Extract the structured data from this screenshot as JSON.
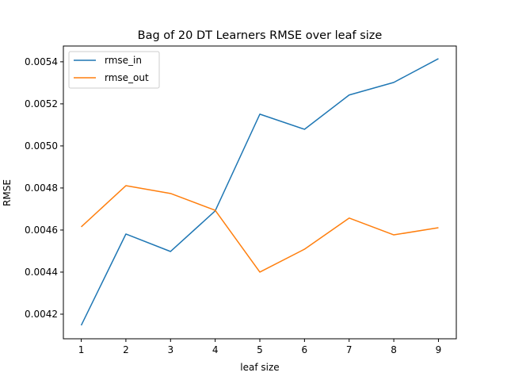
{
  "chart_data": {
    "type": "line",
    "title": "Bag of 20 DT Learners RMSE over leaf size",
    "xlabel": "leaf size",
    "ylabel": "RMSE",
    "x": [
      1,
      2,
      3,
      4,
      5,
      6,
      7,
      8,
      9
    ],
    "xlim": [
      0.6,
      9.4
    ],
    "ylim": [
      0.004083,
      0.005475
    ],
    "xticks": [
      "1",
      "2",
      "3",
      "4",
      "5",
      "6",
      "7",
      "8",
      "9"
    ],
    "yticks": [
      0.0042,
      0.0044,
      0.0046,
      0.0048,
      0.005,
      0.0052,
      0.0054
    ],
    "ytick_labels": [
      "0.0042",
      "0.0044",
      "0.0046",
      "0.0048",
      "0.0050",
      "0.0052",
      "0.0054"
    ],
    "grid": false,
    "legend_position": "upper-left",
    "series": [
      {
        "name": "rmse_in",
        "color": "#1f77b4",
        "values": [
          0.004147,
          0.004581,
          0.004498,
          0.004691,
          0.005151,
          0.005079,
          0.005242,
          0.005302,
          0.005415
        ]
      },
      {
        "name": "rmse_out",
        "color": "#ff7f0e",
        "values": [
          0.004615,
          0.004811,
          0.004774,
          0.004694,
          0.0044,
          0.004509,
          0.004657,
          0.004577,
          0.004611
        ]
      }
    ]
  }
}
